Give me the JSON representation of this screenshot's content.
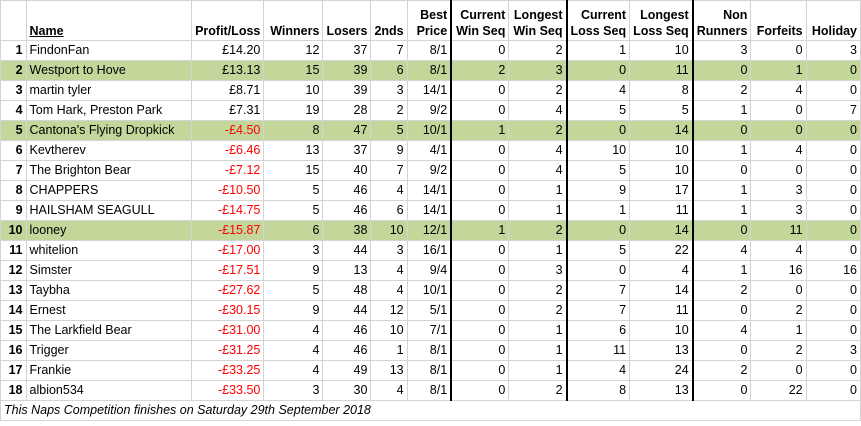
{
  "headers": {
    "name": "Name",
    "profit": "Profit/Loss",
    "winners": "Winners",
    "losers": "Losers",
    "seconds": "2nds",
    "best_top": "Best",
    "best_bottom": "Price",
    "cws_top": "Current",
    "cws_bottom": "Win Seq",
    "lws_top": "Longest",
    "lws_bottom": "Win Seq",
    "cls_top": "Current",
    "cls_bottom": "Loss Seq",
    "lls_top": "Longest",
    "lls_bottom": "Loss Seq",
    "nr_top": "Non",
    "nr_bottom": "Runners",
    "forfeits": "Forfeits",
    "holiday": "Holiday"
  },
  "highlight_color": "#c4d79b",
  "negative_color": "#ff0000",
  "rows": [
    {
      "idx": "1",
      "name": "FindonFan",
      "profit": "£14.20",
      "winners": "12",
      "losers": "37",
      "seconds": "7",
      "best": "8/1",
      "cws": "0",
      "lws": "2",
      "cls": "1",
      "lls": "10",
      "nr": "3",
      "forfeits": "0",
      "holiday": "3",
      "hl": false,
      "neg": false
    },
    {
      "idx": "2",
      "name": "Westport to Hove",
      "profit": "£13.13",
      "winners": "15",
      "losers": "39",
      "seconds": "6",
      "best": "8/1",
      "cws": "2",
      "lws": "3",
      "cls": "0",
      "lls": "11",
      "nr": "0",
      "forfeits": "1",
      "holiday": "0",
      "hl": true,
      "neg": false
    },
    {
      "idx": "3",
      "name": "martin tyler",
      "profit": "£8.71",
      "winners": "10",
      "losers": "39",
      "seconds": "3",
      "best": "14/1",
      "cws": "0",
      "lws": "2",
      "cls": "4",
      "lls": "8",
      "nr": "2",
      "forfeits": "4",
      "holiday": "0",
      "hl": false,
      "neg": false
    },
    {
      "idx": "4",
      "name": "Tom Hark, Preston Park",
      "profit": "£7.31",
      "winners": "19",
      "losers": "28",
      "seconds": "2",
      "best": "9/2",
      "cws": "0",
      "lws": "4",
      "cls": "5",
      "lls": "5",
      "nr": "1",
      "forfeits": "0",
      "holiday": "7",
      "hl": false,
      "neg": false
    },
    {
      "idx": "5",
      "name": "Cantona's Flying Dropkick",
      "profit": "-£4.50",
      "winners": "8",
      "losers": "47",
      "seconds": "5",
      "best": "10/1",
      "cws": "1",
      "lws": "2",
      "cls": "0",
      "lls": "14",
      "nr": "0",
      "forfeits": "0",
      "holiday": "0",
      "hl": true,
      "neg": true
    },
    {
      "idx": "6",
      "name": "Kevtherev",
      "profit": "-£6.46",
      "winners": "13",
      "losers": "37",
      "seconds": "9",
      "best": "4/1",
      "cws": "0",
      "lws": "4",
      "cls": "10",
      "lls": "10",
      "nr": "1",
      "forfeits": "4",
      "holiday": "0",
      "hl": false,
      "neg": true
    },
    {
      "idx": "7",
      "name": "The Brighton Bear",
      "profit": "-£7.12",
      "winners": "15",
      "losers": "40",
      "seconds": "7",
      "best": "9/2",
      "cws": "0",
      "lws": "4",
      "cls": "5",
      "lls": "10",
      "nr": "0",
      "forfeits": "0",
      "holiday": "0",
      "hl": false,
      "neg": true
    },
    {
      "idx": "8",
      "name": "CHAPPERS",
      "profit": "-£10.50",
      "winners": "5",
      "losers": "46",
      "seconds": "4",
      "best": "14/1",
      "cws": "0",
      "lws": "1",
      "cls": "9",
      "lls": "17",
      "nr": "1",
      "forfeits": "3",
      "holiday": "0",
      "hl": false,
      "neg": true
    },
    {
      "idx": "9",
      "name": "HAILSHAM SEAGULL",
      "profit": "-£14.75",
      "winners": "5",
      "losers": "46",
      "seconds": "6",
      "best": "14/1",
      "cws": "0",
      "lws": "1",
      "cls": "1",
      "lls": "11",
      "nr": "1",
      "forfeits": "3",
      "holiday": "0",
      "hl": false,
      "neg": true
    },
    {
      "idx": "10",
      "name": "looney",
      "profit": "-£15.87",
      "winners": "6",
      "losers": "38",
      "seconds": "10",
      "best": "12/1",
      "cws": "1",
      "lws": "2",
      "cls": "0",
      "lls": "14",
      "nr": "0",
      "forfeits": "11",
      "holiday": "0",
      "hl": true,
      "neg": true
    },
    {
      "idx": "11",
      "name": "whitelion",
      "profit": "-£17.00",
      "winners": "3",
      "losers": "44",
      "seconds": "3",
      "best": "16/1",
      "cws": "0",
      "lws": "1",
      "cls": "5",
      "lls": "22",
      "nr": "4",
      "forfeits": "4",
      "holiday": "0",
      "hl": false,
      "neg": true
    },
    {
      "idx": "12",
      "name": "Simster",
      "profit": "-£17.51",
      "winners": "9",
      "losers": "13",
      "seconds": "4",
      "best": "9/4",
      "cws": "0",
      "lws": "3",
      "cls": "0",
      "lls": "4",
      "nr": "1",
      "forfeits": "16",
      "holiday": "16",
      "hl": false,
      "neg": true
    },
    {
      "idx": "13",
      "name": "Taybha",
      "profit": "-£27.62",
      "winners": "5",
      "losers": "48",
      "seconds": "4",
      "best": "10/1",
      "cws": "0",
      "lws": "2",
      "cls": "7",
      "lls": "14",
      "nr": "2",
      "forfeits": "0",
      "holiday": "0",
      "hl": false,
      "neg": true
    },
    {
      "idx": "14",
      "name": "Ernest",
      "profit": "-£30.15",
      "winners": "9",
      "losers": "44",
      "seconds": "12",
      "best": "5/1",
      "cws": "0",
      "lws": "2",
      "cls": "7",
      "lls": "11",
      "nr": "0",
      "forfeits": "2",
      "holiday": "0",
      "hl": false,
      "neg": true
    },
    {
      "idx": "15",
      "name": "The Larkfield Bear",
      "profit": "-£31.00",
      "winners": "4",
      "losers": "46",
      "seconds": "10",
      "best": "7/1",
      "cws": "0",
      "lws": "1",
      "cls": "6",
      "lls": "10",
      "nr": "4",
      "forfeits": "1",
      "holiday": "0",
      "hl": false,
      "neg": true
    },
    {
      "idx": "16",
      "name": "Trigger",
      "profit": "-£31.25",
      "winners": "4",
      "losers": "46",
      "seconds": "1",
      "best": "8/1",
      "cws": "0",
      "lws": "1",
      "cls": "11",
      "lls": "13",
      "nr": "0",
      "forfeits": "2",
      "holiday": "3",
      "hl": false,
      "neg": true
    },
    {
      "idx": "17",
      "name": "Frankie",
      "profit": "-£33.25",
      "winners": "4",
      "losers": "49",
      "seconds": "13",
      "best": "8/1",
      "cws": "0",
      "lws": "1",
      "cls": "4",
      "lls": "24",
      "nr": "2",
      "forfeits": "0",
      "holiday": "0",
      "hl": false,
      "neg": true
    },
    {
      "idx": "18",
      "name": "albion534",
      "profit": "-£33.50",
      "winners": "3",
      "losers": "30",
      "seconds": "4",
      "best": "8/1",
      "cws": "0",
      "lws": "2",
      "cls": "8",
      "lls": "13",
      "nr": "0",
      "forfeits": "22",
      "holiday": "0",
      "hl": false,
      "neg": true
    }
  ],
  "footer": "This Naps Competition finishes on Saturday 29th September 2018"
}
